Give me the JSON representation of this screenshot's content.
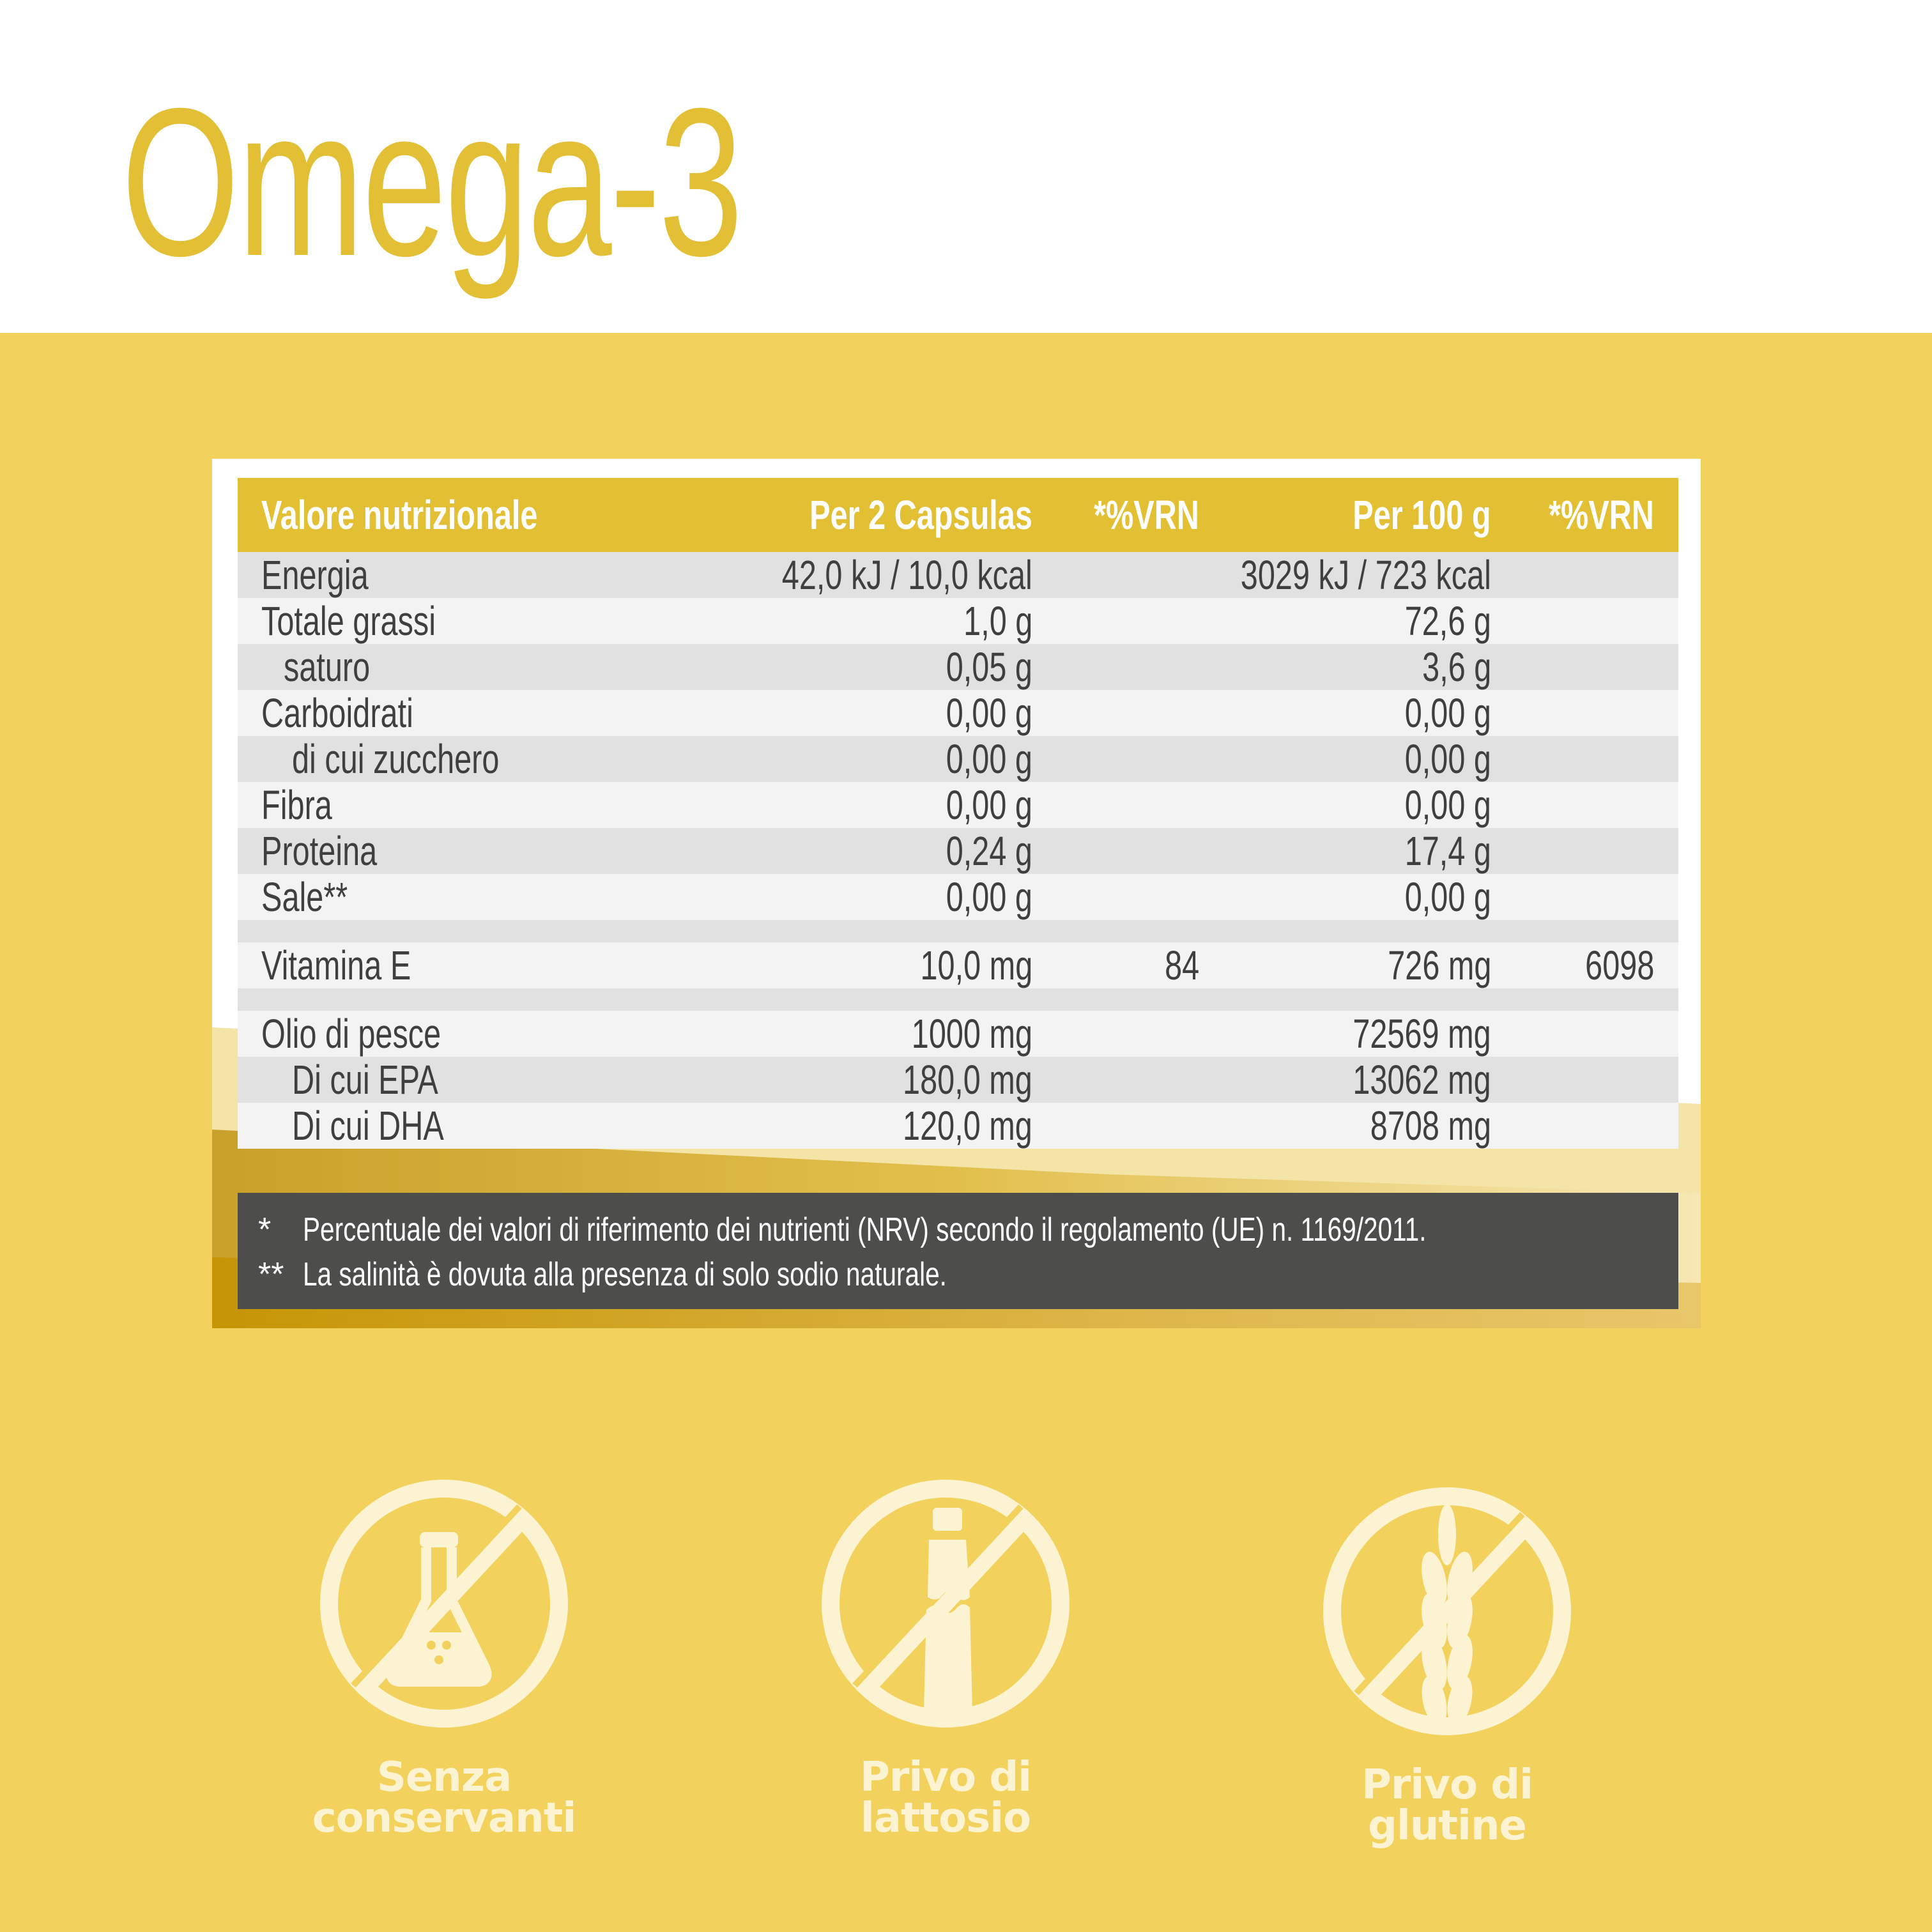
{
  "title": "Omega-3",
  "colors": {
    "accent": "#e3bf33",
    "background": "#f2d25c",
    "notes_bg": "#4d4d4b",
    "icon": "#fcf3d2"
  },
  "table": {
    "headers": [
      "Valore nutrizionale",
      "Per 2 Capsulas",
      "*%VRN",
      "Per 100 g",
      "*%VRN"
    ],
    "rows": [
      {
        "label": "Energia",
        "per2": "42,0 kJ / 10,0 kcal",
        "vrn1": "",
        "per100": "3029 kJ / 723 kcal",
        "vrn2": ""
      },
      {
        "label": "Totale grassi",
        "per2": "1,0 g",
        "vrn1": "",
        "per100": "72,6 g",
        "vrn2": ""
      },
      {
        "label": "saturo",
        "per2": "0,05 g",
        "vrn1": "",
        "per100": "3,6 g",
        "vrn2": ""
      },
      {
        "label": "Carboidrati",
        "per2": "0,00 g",
        "vrn1": "",
        "per100": "0,00 g",
        "vrn2": ""
      },
      {
        "label": "di cui zucchero",
        "per2": "0,00 g",
        "vrn1": "",
        "per100": "0,00 g",
        "vrn2": ""
      },
      {
        "label": "Fibra",
        "per2": "0,00 g",
        "vrn1": "",
        "per100": "0,00 g",
        "vrn2": ""
      },
      {
        "label": "Proteina",
        "per2": "0,24 g",
        "vrn1": "",
        "per100": "17,4 g",
        "vrn2": ""
      },
      {
        "label": "Sale**",
        "per2": "0,00 g",
        "vrn1": "",
        "per100": "0,00 g",
        "vrn2": ""
      },
      {
        "label": "Vitamina E",
        "per2": "10,0 mg",
        "vrn1": "84",
        "per100": "726 mg",
        "vrn2": "6098"
      },
      {
        "label": "Olio di pesce",
        "per2": "1000 mg",
        "vrn1": "",
        "per100": "72569 mg",
        "vrn2": ""
      },
      {
        "label": "Di cui EPA",
        "per2": "180,0 mg",
        "vrn1": "",
        "per100": "13062 mg",
        "vrn2": ""
      },
      {
        "label": "Di cui DHA",
        "per2": "120,0 mg",
        "vrn1": "",
        "per100": "8708 mg",
        "vrn2": ""
      }
    ]
  },
  "notes": [
    {
      "mark": "*",
      "text": "Percentuale dei valori di riferimento dei nutrienti (NRV) secondo il regolamento (UE) n. 1169/2011."
    },
    {
      "mark": "**",
      "text": "La salinità è dovuta alla presenza di solo sodio naturale."
    }
  ],
  "badges": [
    {
      "icon": "no-preservatives-flask-icon",
      "line1": "Senza",
      "line2": "conservanti"
    },
    {
      "icon": "lactose-free-bottle-icon",
      "line1": "Privo di",
      "line2": "lattosio"
    },
    {
      "icon": "gluten-free-wheat-icon",
      "line1": "Privo di",
      "line2": "glutine"
    }
  ]
}
